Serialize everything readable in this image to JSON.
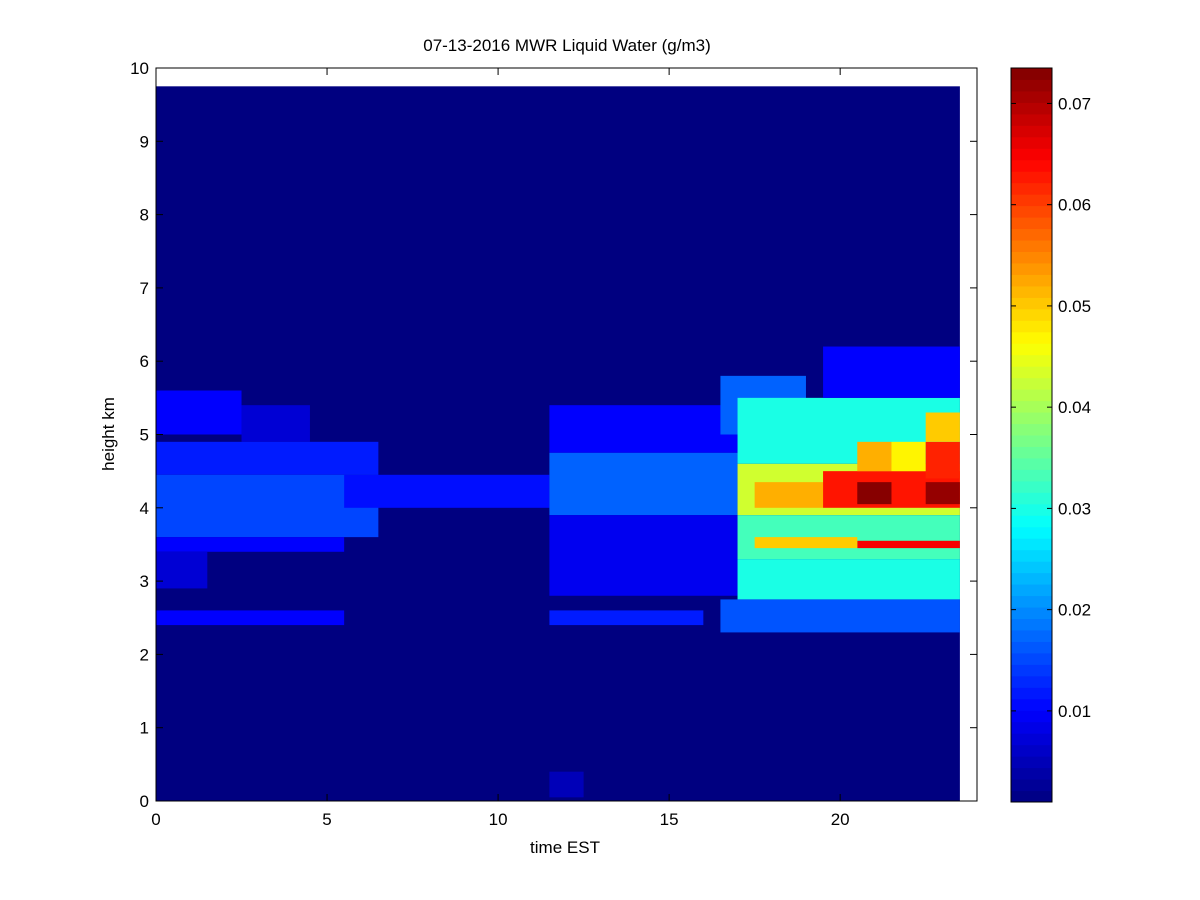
{
  "chart_data": {
    "type": "heatmap",
    "title": "07-13-2016 MWR Liquid Water (g/m3)",
    "xlabel": "time EST",
    "ylabel": "height km",
    "xlim": [
      0,
      24
    ],
    "ylim": [
      0,
      10
    ],
    "x_ticks": [
      0,
      5,
      10,
      15,
      20
    ],
    "y_ticks": [
      0,
      1,
      2,
      3,
      4,
      5,
      6,
      7,
      8,
      9,
      10
    ],
    "colorbar": {
      "colormap": "jet",
      "range": [
        0.001,
        0.0735
      ],
      "ticks": [
        0.01,
        0.02,
        0.03,
        0.04,
        0.05,
        0.06,
        0.07
      ],
      "tick_labels": [
        "0.01",
        "0.02",
        "0.03",
        "0.04",
        "0.05",
        "0.06",
        "0.07"
      ]
    },
    "time_columns": [
      0,
      1,
      2,
      3,
      4,
      5,
      6,
      7,
      8,
      9,
      10,
      11,
      12,
      13,
      14,
      15,
      16,
      17,
      18,
      19,
      20,
      21,
      22,
      23
    ],
    "height_data_top_km": 9.75,
    "features": [
      {
        "t0": 0,
        "t1": 2.5,
        "h0": 5.0,
        "h1": 5.6,
        "v": 0.01
      },
      {
        "t0": 2.5,
        "t1": 4.5,
        "h0": 4.9,
        "h1": 5.4,
        "v": 0.007
      },
      {
        "t0": 0,
        "t1": 6.5,
        "h0": 4.45,
        "h1": 4.9,
        "v": 0.012
      },
      {
        "t0": 0,
        "t1": 6.5,
        "h0": 3.6,
        "h1": 4.45,
        "v": 0.015
      },
      {
        "t0": 0,
        "t1": 5.5,
        "h0": 3.4,
        "h1": 3.6,
        "v": 0.01
      },
      {
        "t0": 0,
        "t1": 1.5,
        "h0": 2.9,
        "h1": 3.4,
        "v": 0.007
      },
      {
        "t0": 0,
        "t1": 5.5,
        "h0": 2.4,
        "h1": 2.6,
        "v": 0.01
      },
      {
        "t0": 5.5,
        "t1": 11.5,
        "h0": 4.0,
        "h1": 4.45,
        "v": 0.011
      },
      {
        "t0": 11.5,
        "t1": 17,
        "h0": 4.75,
        "h1": 5.4,
        "v": 0.01
      },
      {
        "t0": 11.5,
        "t1": 17,
        "h0": 3.9,
        "h1": 4.75,
        "v": 0.017
      },
      {
        "t0": 11.5,
        "t1": 17,
        "h0": 2.8,
        "h1": 3.9,
        "v": 0.009
      },
      {
        "t0": 11.5,
        "t1": 16,
        "h0": 2.4,
        "h1": 2.6,
        "v": 0.012
      },
      {
        "t0": 16.5,
        "t1": 19,
        "h0": 5.0,
        "h1": 5.8,
        "v": 0.017
      },
      {
        "t0": 17,
        "t1": 23.5,
        "h0": 4.6,
        "h1": 5.5,
        "v": 0.03
      },
      {
        "t0": 17,
        "t1": 23.5,
        "h0": 3.9,
        "h1": 4.6,
        "v": 0.043
      },
      {
        "t0": 17,
        "t1": 23.5,
        "h0": 3.3,
        "h1": 3.9,
        "v": 0.033
      },
      {
        "t0": 17,
        "t1": 23.5,
        "h0": 2.75,
        "h1": 3.3,
        "v": 0.03
      },
      {
        "t0": 16.5,
        "t1": 23.5,
        "h0": 2.3,
        "h1": 2.75,
        "v": 0.016
      },
      {
        "t0": 19.5,
        "t1": 23.5,
        "h0": 5.5,
        "h1": 6.2,
        "v": 0.01
      },
      {
        "t0": 17.5,
        "t1": 19.5,
        "h0": 4.0,
        "h1": 4.35,
        "v": 0.052
      },
      {
        "t0": 19.5,
        "t1": 23.5,
        "h0": 4.0,
        "h1": 4.5,
        "v": 0.063
      },
      {
        "t0": 20.5,
        "t1": 21.5,
        "h0": 4.05,
        "h1": 4.35,
        "v": 0.073
      },
      {
        "t0": 22.5,
        "t1": 23.5,
        "h0": 4.05,
        "h1": 4.35,
        "v": 0.072
      },
      {
        "t0": 20.5,
        "t1": 21.5,
        "h0": 4.5,
        "h1": 4.9,
        "v": 0.052
      },
      {
        "t0": 21.5,
        "t1": 22.5,
        "h0": 4.5,
        "h1": 4.9,
        "v": 0.047
      },
      {
        "t0": 22.5,
        "t1": 23.5,
        "h0": 4.4,
        "h1": 4.9,
        "v": 0.062
      },
      {
        "t0": 22.5,
        "t1": 23.5,
        "h0": 4.9,
        "h1": 5.3,
        "v": 0.05
      },
      {
        "t0": 20.5,
        "t1": 23.5,
        "h0": 3.45,
        "h1": 3.55,
        "v": 0.065
      },
      {
        "t0": 17.5,
        "t1": 20.5,
        "h0": 3.45,
        "h1": 3.6,
        "v": 0.05
      },
      {
        "t0": 11.5,
        "t1": 12.5,
        "h0": 0.05,
        "h1": 0.4,
        "v": 0.005
      }
    ]
  }
}
